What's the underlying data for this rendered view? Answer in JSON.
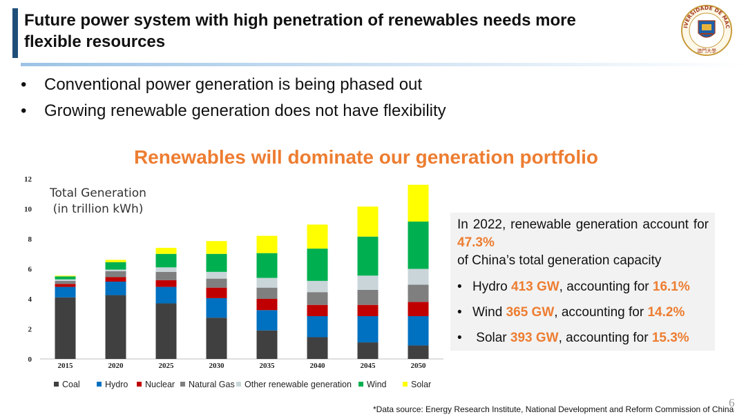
{
  "slide": {
    "title_line1": "Future power system with high penetration of renewables needs more",
    "title_line2": "flexible resources",
    "bullets": [
      "Conventional power generation is being phased out",
      "Growing renewable generation does not have flexibility"
    ],
    "bullet_glyph": "•",
    "page_number": "6",
    "source": "*Data source: Energy Research Institute, National Development and Reform Commission of China",
    "logo": {
      "ring_text": "UNIVERSIDADE DE MACAU",
      "chinese_text": "澳門大學"
    }
  },
  "callout": {
    "intro_before": "In 2022, renewable generation account for ",
    "intro_highlight": "47.3%",
    "intro_after": " of China’s total generation capacity",
    "items": [
      {
        "name": "Hydro",
        "capacity": "413 GW",
        "middle": ", accounting for ",
        "share": "16.1%"
      },
      {
        "name": "Wind",
        "capacity": "365 GW",
        "middle": ", accounting for ",
        "share": "14.2%"
      },
      {
        "name": "Solar",
        "capacity": "393 GW",
        "middle": ", accounting for ",
        "share": "15.3%"
      }
    ]
  },
  "chart_data": {
    "type": "bar",
    "stacked": true,
    "title": "Renewables will dominate our generation portfolio",
    "inner_label_line1": "Total Generation",
    "inner_label_line2": "(in trillion kWh)",
    "categories": [
      "2015",
      "2020",
      "2025",
      "2030",
      "2035",
      "2040",
      "2045",
      "2050"
    ],
    "ylim": [
      0,
      12
    ],
    "yticks": [
      0,
      2,
      4,
      6,
      8,
      10,
      12
    ],
    "series": [
      {
        "name": "Coal",
        "color": "#404040",
        "values": [
          4.1,
          4.25,
          3.7,
          2.75,
          1.9,
          1.45,
          1.1,
          0.9
        ]
      },
      {
        "name": "Hydro",
        "color": "#0070c0",
        "values": [
          0.7,
          0.9,
          1.1,
          1.3,
          1.35,
          1.4,
          1.75,
          1.95
        ]
      },
      {
        "name": "Nuclear",
        "color": "#c00000",
        "values": [
          0.2,
          0.3,
          0.45,
          0.7,
          0.75,
          0.75,
          0.75,
          0.95
        ]
      },
      {
        "name": "Natural Gas",
        "color": "#7f7f7f",
        "values": [
          0.2,
          0.4,
          0.55,
          0.6,
          0.75,
          0.85,
          1.0,
          1.15
        ]
      },
      {
        "name": "Other renewable generation",
        "color": "#c9d5d9",
        "values": [
          0.1,
          0.1,
          0.3,
          0.45,
          0.65,
          0.75,
          0.95,
          1.05
        ]
      },
      {
        "name": "Wind",
        "color": "#00b050",
        "values": [
          0.2,
          0.5,
          0.9,
          1.2,
          1.65,
          2.15,
          2.6,
          3.15
        ]
      },
      {
        "name": "Solar",
        "color": "#ffff00",
        "values": [
          0.05,
          0.15,
          0.4,
          0.85,
          1.15,
          1.6,
          2.0,
          2.45
        ]
      }
    ]
  }
}
